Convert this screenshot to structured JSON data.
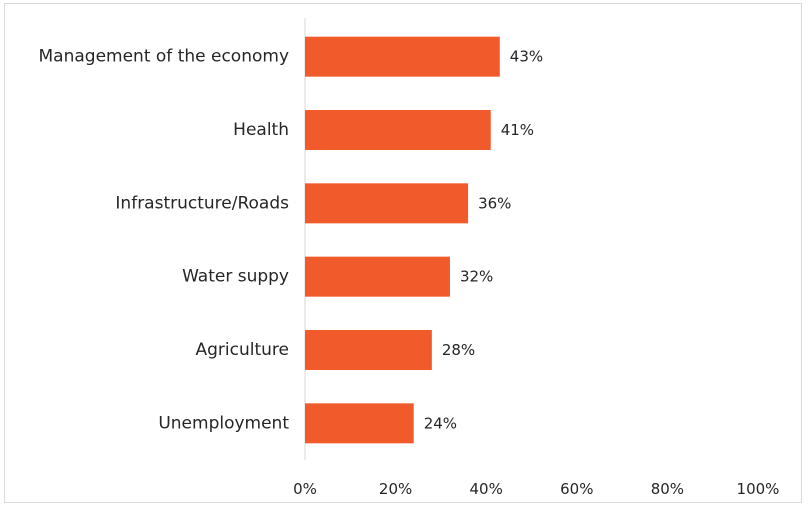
{
  "chart_data": {
    "type": "bar",
    "orientation": "horizontal",
    "title": "",
    "xlabel": "",
    "ylabel": "",
    "categories": [
      "Management of the economy",
      "Health",
      "Infrastructure/Roads",
      "Water suppy",
      "Agriculture",
      "Unemployment"
    ],
    "values": [
      43,
      41,
      36,
      32,
      28,
      24
    ],
    "value_labels": [
      "43%",
      "41%",
      "36%",
      "32%",
      "28%",
      "24%"
    ],
    "xlim": [
      0,
      100
    ],
    "x_ticks": [
      0,
      20,
      40,
      60,
      80,
      100
    ],
    "x_tick_labels": [
      "0%",
      "20%",
      "40%",
      "60%",
      "80%",
      "100%"
    ],
    "grid": false,
    "legend": "none",
    "bar_color": "#f15a2b",
    "axis_color": "#d9d9d9"
  }
}
